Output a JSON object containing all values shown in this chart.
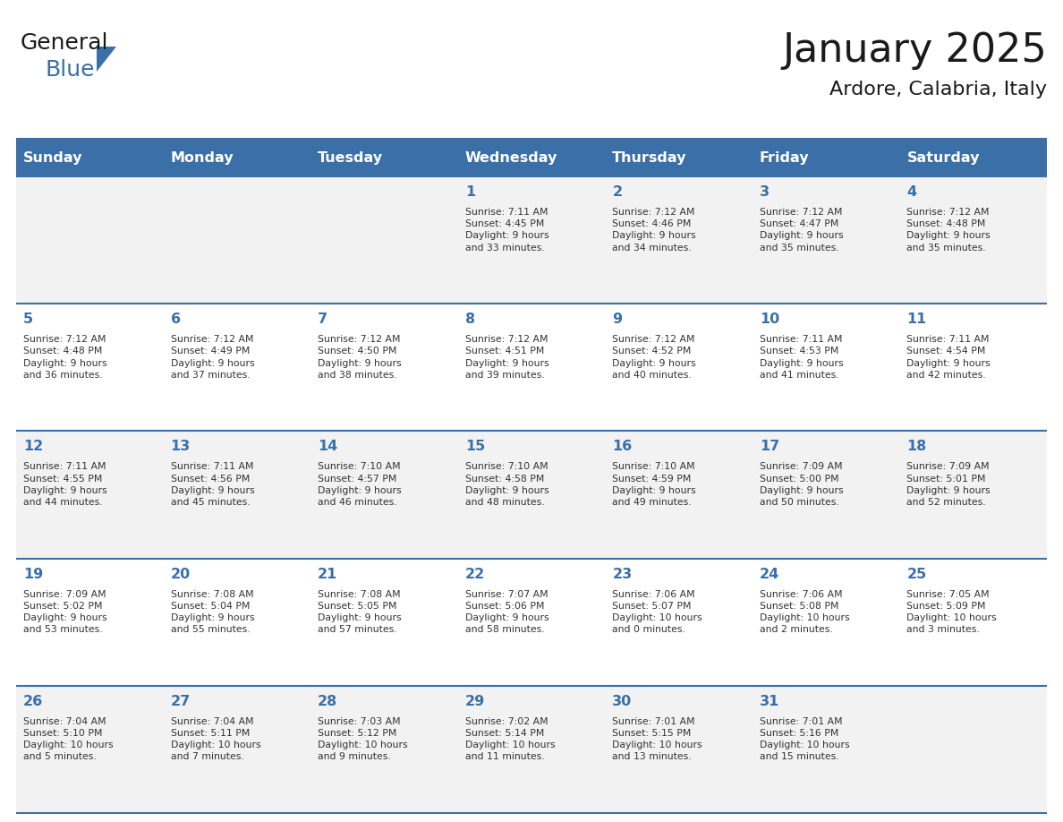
{
  "title": "January 2025",
  "subtitle": "Ardore, Calabria, Italy",
  "days_of_week": [
    "Sunday",
    "Monday",
    "Tuesday",
    "Wednesday",
    "Thursday",
    "Friday",
    "Saturday"
  ],
  "header_bg": "#3a6fa8",
  "header_text": "#ffffff",
  "odd_row_bg": "#f2f2f2",
  "even_row_bg": "#ffffff",
  "border_color": "#3a6fa8",
  "day_number_color": "#3a6fa8",
  "cell_text_color": "#333333",
  "calendar_data": [
    [
      {
        "day": null,
        "info": null
      },
      {
        "day": null,
        "info": null
      },
      {
        "day": null,
        "info": null
      },
      {
        "day": 1,
        "info": "Sunrise: 7:11 AM\nSunset: 4:45 PM\nDaylight: 9 hours\nand 33 minutes."
      },
      {
        "day": 2,
        "info": "Sunrise: 7:12 AM\nSunset: 4:46 PM\nDaylight: 9 hours\nand 34 minutes."
      },
      {
        "day": 3,
        "info": "Sunrise: 7:12 AM\nSunset: 4:47 PM\nDaylight: 9 hours\nand 35 minutes."
      },
      {
        "day": 4,
        "info": "Sunrise: 7:12 AM\nSunset: 4:48 PM\nDaylight: 9 hours\nand 35 minutes."
      }
    ],
    [
      {
        "day": 5,
        "info": "Sunrise: 7:12 AM\nSunset: 4:48 PM\nDaylight: 9 hours\nand 36 minutes."
      },
      {
        "day": 6,
        "info": "Sunrise: 7:12 AM\nSunset: 4:49 PM\nDaylight: 9 hours\nand 37 minutes."
      },
      {
        "day": 7,
        "info": "Sunrise: 7:12 AM\nSunset: 4:50 PM\nDaylight: 9 hours\nand 38 minutes."
      },
      {
        "day": 8,
        "info": "Sunrise: 7:12 AM\nSunset: 4:51 PM\nDaylight: 9 hours\nand 39 minutes."
      },
      {
        "day": 9,
        "info": "Sunrise: 7:12 AM\nSunset: 4:52 PM\nDaylight: 9 hours\nand 40 minutes."
      },
      {
        "day": 10,
        "info": "Sunrise: 7:11 AM\nSunset: 4:53 PM\nDaylight: 9 hours\nand 41 minutes."
      },
      {
        "day": 11,
        "info": "Sunrise: 7:11 AM\nSunset: 4:54 PM\nDaylight: 9 hours\nand 42 minutes."
      }
    ],
    [
      {
        "day": 12,
        "info": "Sunrise: 7:11 AM\nSunset: 4:55 PM\nDaylight: 9 hours\nand 44 minutes."
      },
      {
        "day": 13,
        "info": "Sunrise: 7:11 AM\nSunset: 4:56 PM\nDaylight: 9 hours\nand 45 minutes."
      },
      {
        "day": 14,
        "info": "Sunrise: 7:10 AM\nSunset: 4:57 PM\nDaylight: 9 hours\nand 46 minutes."
      },
      {
        "day": 15,
        "info": "Sunrise: 7:10 AM\nSunset: 4:58 PM\nDaylight: 9 hours\nand 48 minutes."
      },
      {
        "day": 16,
        "info": "Sunrise: 7:10 AM\nSunset: 4:59 PM\nDaylight: 9 hours\nand 49 minutes."
      },
      {
        "day": 17,
        "info": "Sunrise: 7:09 AM\nSunset: 5:00 PM\nDaylight: 9 hours\nand 50 minutes."
      },
      {
        "day": 18,
        "info": "Sunrise: 7:09 AM\nSunset: 5:01 PM\nDaylight: 9 hours\nand 52 minutes."
      }
    ],
    [
      {
        "day": 19,
        "info": "Sunrise: 7:09 AM\nSunset: 5:02 PM\nDaylight: 9 hours\nand 53 minutes."
      },
      {
        "day": 20,
        "info": "Sunrise: 7:08 AM\nSunset: 5:04 PM\nDaylight: 9 hours\nand 55 minutes."
      },
      {
        "day": 21,
        "info": "Sunrise: 7:08 AM\nSunset: 5:05 PM\nDaylight: 9 hours\nand 57 minutes."
      },
      {
        "day": 22,
        "info": "Sunrise: 7:07 AM\nSunset: 5:06 PM\nDaylight: 9 hours\nand 58 minutes."
      },
      {
        "day": 23,
        "info": "Sunrise: 7:06 AM\nSunset: 5:07 PM\nDaylight: 10 hours\nand 0 minutes."
      },
      {
        "day": 24,
        "info": "Sunrise: 7:06 AM\nSunset: 5:08 PM\nDaylight: 10 hours\nand 2 minutes."
      },
      {
        "day": 25,
        "info": "Sunrise: 7:05 AM\nSunset: 5:09 PM\nDaylight: 10 hours\nand 3 minutes."
      }
    ],
    [
      {
        "day": 26,
        "info": "Sunrise: 7:04 AM\nSunset: 5:10 PM\nDaylight: 10 hours\nand 5 minutes."
      },
      {
        "day": 27,
        "info": "Sunrise: 7:04 AM\nSunset: 5:11 PM\nDaylight: 10 hours\nand 7 minutes."
      },
      {
        "day": 28,
        "info": "Sunrise: 7:03 AM\nSunset: 5:12 PM\nDaylight: 10 hours\nand 9 minutes."
      },
      {
        "day": 29,
        "info": "Sunrise: 7:02 AM\nSunset: 5:14 PM\nDaylight: 10 hours\nand 11 minutes."
      },
      {
        "day": 30,
        "info": "Sunrise: 7:01 AM\nSunset: 5:15 PM\nDaylight: 10 hours\nand 13 minutes."
      },
      {
        "day": 31,
        "info": "Sunrise: 7:01 AM\nSunset: 5:16 PM\nDaylight: 10 hours\nand 15 minutes."
      },
      {
        "day": null,
        "info": null
      }
    ]
  ],
  "logo_text_general": "General",
  "logo_text_blue": "Blue",
  "logo_color_general": "#1a1a1a",
  "logo_color_blue": "#3a6fa8",
  "logo_triangle_color": "#3a6fa8"
}
